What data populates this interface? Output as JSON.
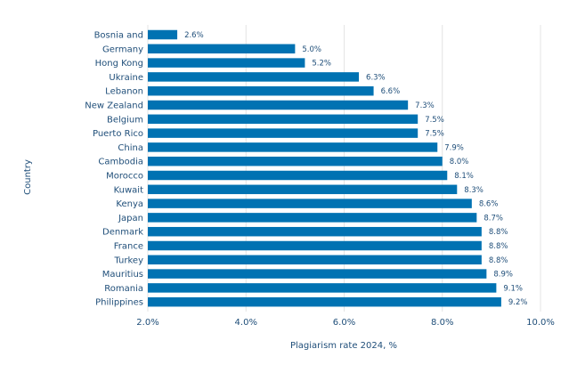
{
  "chart_data": {
    "type": "bar",
    "orientation": "horizontal",
    "title": "",
    "xlabel": "Plagiarism rate 2024, %",
    "ylabel": "Country",
    "xlim": [
      2.0,
      10.0
    ],
    "x_ticks": [
      2.0,
      4.0,
      6.0,
      8.0,
      10.0
    ],
    "x_tick_labels": [
      "2.0%",
      "4.0%",
      "6.0%",
      "8.0%",
      "10.0%"
    ],
    "grid": "vertical",
    "bar_color": "#0072b2",
    "categories": [
      "Bosnia and",
      "Germany",
      "Hong Kong",
      "Ukraine",
      "Lebanon",
      "New Zealand",
      "Belgium",
      "Puerto Rico",
      "China",
      "Cambodia",
      "Morocco",
      "Kuwait",
      "Kenya",
      "Japan",
      "Denmark",
      "France",
      "Turkey",
      "Mauritius",
      "Romania",
      "Philippines"
    ],
    "values": [
      2.6,
      5.0,
      5.2,
      6.3,
      6.6,
      7.3,
      7.5,
      7.5,
      7.9,
      8.0,
      8.1,
      8.3,
      8.6,
      8.7,
      8.8,
      8.8,
      8.8,
      8.9,
      9.1,
      9.2
    ],
    "value_labels": [
      "2.6%",
      "5.0%",
      "5.2%",
      "6.3%",
      "6.6%",
      "7.3%",
      "7.5%",
      "7.5%",
      "7.9%",
      "8.0%",
      "8.1%",
      "8.3%",
      "8.6%",
      "8.7%",
      "8.8%",
      "8.8%",
      "8.8%",
      "8.9%",
      "9.1%",
      "9.2%"
    ]
  }
}
